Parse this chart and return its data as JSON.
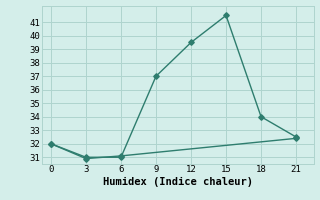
{
  "xlabel": "Humidex (Indice chaleur)",
  "line1_x": [
    0,
    3,
    6,
    9,
    12,
    15,
    18,
    21
  ],
  "line1_y": [
    32,
    31,
    31,
    37,
    39.5,
    41.5,
    34,
    32.5
  ],
  "line2_x": [
    0,
    3,
    6,
    21
  ],
  "line2_y": [
    32,
    30.9,
    31.1,
    32.4
  ],
  "line_color": "#2e7d6e",
  "bg_color": "#d4eeea",
  "grid_color": "#aed4ce",
  "xlim": [
    -0.8,
    22.5
  ],
  "ylim": [
    30.5,
    42.2
  ],
  "xticks": [
    0,
    3,
    6,
    9,
    12,
    15,
    18,
    21
  ],
  "yticks": [
    31,
    32,
    33,
    34,
    35,
    36,
    37,
    38,
    39,
    40,
    41
  ],
  "marker": "D",
  "markersize": 2.8,
  "linewidth": 1.0,
  "xlabel_fontsize": 7.5,
  "tick_fontsize": 6.5
}
